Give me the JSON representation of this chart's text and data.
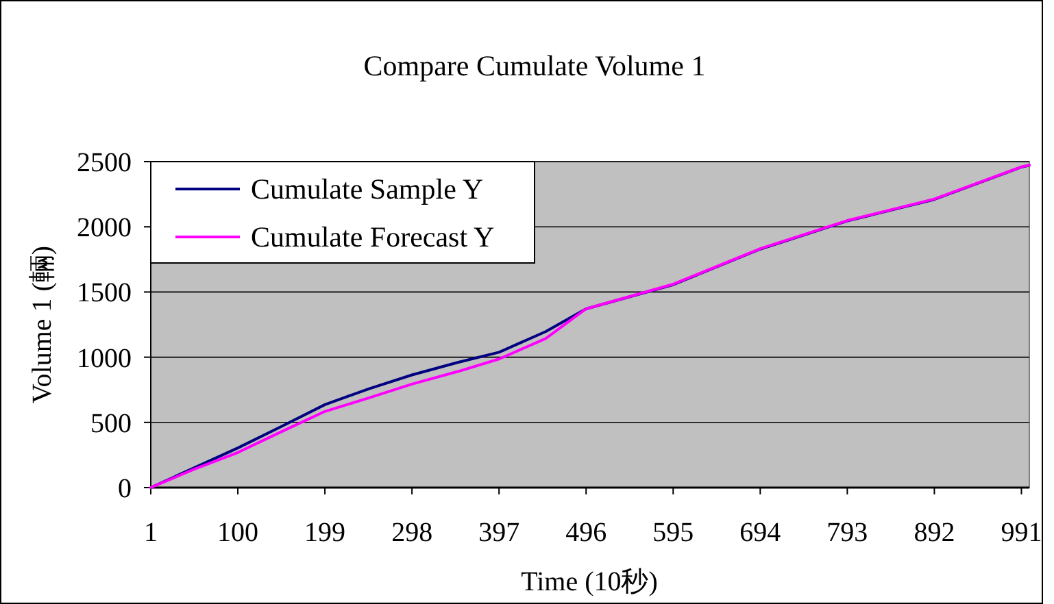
{
  "chart_data": {
    "type": "line",
    "title": "Compare Cumulate Volume 1",
    "xlabel": "Time (10秒)",
    "ylabel": "Volume 1 (輛)",
    "xlim": [
      1,
      1000
    ],
    "xticks": [
      1,
      100,
      199,
      298,
      397,
      496,
      595,
      694,
      793,
      892,
      991
    ],
    "ylim": [
      0,
      2500
    ],
    "yticks": [
      0,
      500,
      1000,
      1500,
      2000,
      2500
    ],
    "grid": "y",
    "legend": "top left",
    "line_style": "solid",
    "marker": "none",
    "series": [
      {
        "name": "Cumulate Sample Y",
        "color": "#000080",
        "x": [
          1,
          50,
          100,
          150,
          199,
          250,
          298,
          350,
          397,
          450,
          496,
          595,
          694,
          793,
          892,
          991,
          1000
        ],
        "values": [
          0,
          150,
          304,
          470,
          636,
          760,
          864,
          960,
          1038,
          1196,
          1371,
          1556,
          1829,
          2045,
          2210,
          2458,
          2472
        ]
      },
      {
        "name": "Cumulate Forecast Y",
        "color": "#ff00ff",
        "x": [
          1,
          50,
          100,
          150,
          199,
          250,
          298,
          350,
          397,
          450,
          496,
          595,
          694,
          793,
          892,
          991,
          1000
        ],
        "values": [
          0,
          140,
          269,
          430,
          584,
          690,
          794,
          890,
          986,
          1143,
          1371,
          1560,
          1832,
          2048,
          2213,
          2460,
          2474
        ]
      }
    ]
  }
}
